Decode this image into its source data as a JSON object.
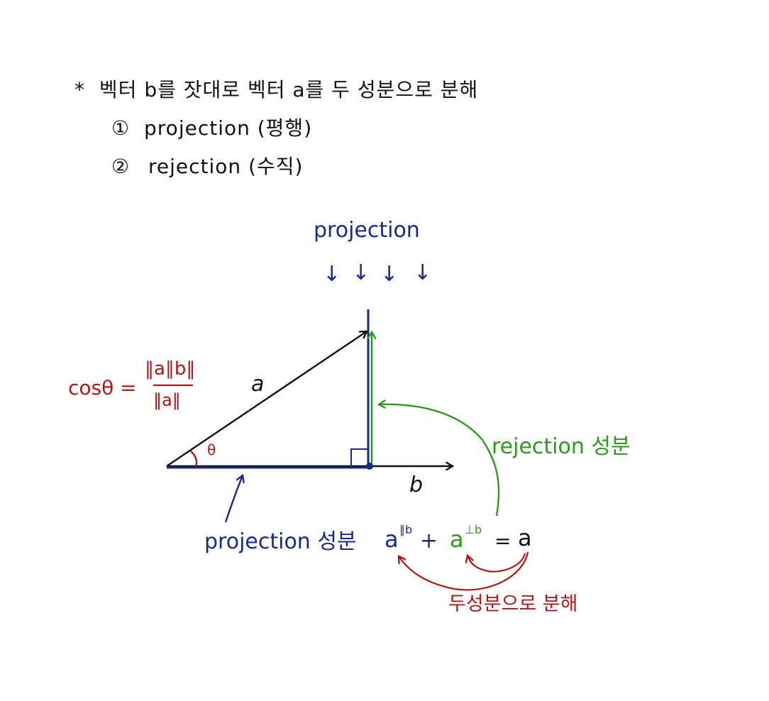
{
  "notes": {
    "heading_star": "*",
    "heading": "벡터 b를 잣대로 벡터 a를 두 성분으로 분해",
    "item1_marker": "①",
    "item1": "projection (평행)",
    "item2_marker": "②",
    "item2": "rejection (수직)"
  },
  "diagram": {
    "projection_top_label": "projection",
    "arrow_glyph": "↓",
    "vector_a": "a",
    "vector_b": "b",
    "theta": "θ",
    "cos_lhs": "cosθ =",
    "cos_numerator": "‖a∥b‖",
    "cos_denominator": "‖a‖",
    "rejection_label": "rejection 성분",
    "projection_label": "projection 성분",
    "eq_parallel": "a",
    "eq_parallel_sup": "∥b",
    "eq_plus": "+",
    "eq_perp": "a",
    "eq_perp_sup": "⊥b",
    "eq_equals": "=",
    "eq_result": "a",
    "decompose_label": "두성분으로 분해"
  },
  "colors": {
    "black": "#111111",
    "blue": "#1a2a8c",
    "green": "#2c9a1c",
    "red": "#b01818"
  }
}
